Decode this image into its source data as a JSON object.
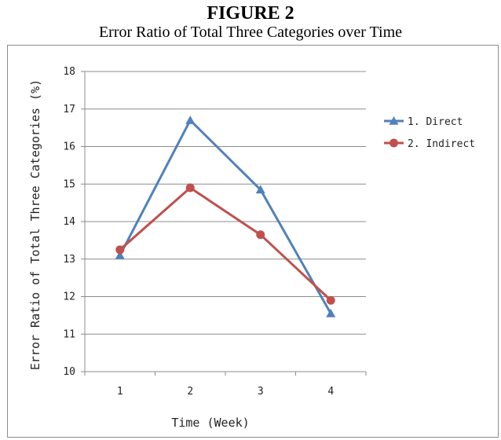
{
  "figure": {
    "number": "FIGURE 2",
    "caption": "Error Ratio of Total Three Categories over Time"
  },
  "chart_data": {
    "type": "line",
    "title": "Error Ratio of Total Three Categories over Time",
    "xlabel": "Time (Week)",
    "ylabel": "Error Ratio of Total Three Categories (%)",
    "categories": [
      "1",
      "2",
      "3",
      "4"
    ],
    "ylim": [
      10,
      18
    ],
    "yticks": [
      "10",
      "11",
      "12",
      "13",
      "14",
      "15",
      "16",
      "17",
      "18"
    ],
    "grid": true,
    "legend": "right",
    "series": [
      {
        "name": "1. Direct",
        "values": [
          13.1,
          16.7,
          14.85,
          11.55
        ],
        "color": "#4f81bd",
        "marker": "triangle"
      },
      {
        "name": "2. Indirect",
        "values": [
          13.25,
          14.9,
          13.65,
          11.9
        ],
        "color": "#c0504d",
        "marker": "circle"
      }
    ]
  }
}
